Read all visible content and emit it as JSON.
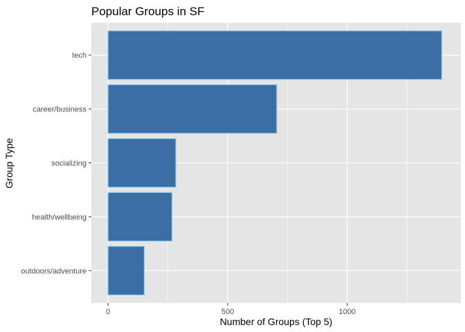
{
  "chart_data": {
    "type": "bar",
    "orientation": "horizontal",
    "title": "Popular Groups in SF",
    "xlabel": "Number of Groups (Top 5)",
    "ylabel": "Group Type",
    "categories": [
      "tech",
      "career/business",
      "socializing",
      "health/wellbeing",
      "outdoors/adventure"
    ],
    "values": [
      1395,
      705,
      283,
      267,
      151
    ],
    "xlim": [
      -70,
      1475
    ],
    "xticks": [
      0,
      500,
      1000
    ],
    "xtick_labels": [
      "0",
      "500",
      "1000"
    ],
    "grid": true,
    "bar_fill": "#3a6ea5",
    "bar_outline": "#7fc4e6",
    "panel_background": "#e5e5e5",
    "gridline_color": "#ffffff"
  }
}
